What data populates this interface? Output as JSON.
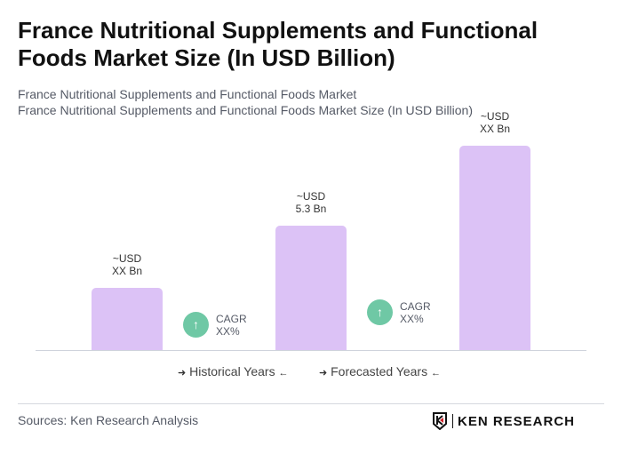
{
  "header": {
    "title": "France Nutritional Supplements and Functional Foods Market Size (In USD Billion)",
    "subtitle1": "France Nutritional Supplements and Functional Foods Market",
    "subtitle2": "France Nutritional Supplements and Functional Foods Market Size (In USD Billion)"
  },
  "chart_data": {
    "type": "bar",
    "categories": [
      "",
      "",
      ""
    ],
    "values": [
      2.65,
      5.3,
      8.7
    ],
    "data_labels": [
      {
        "line1": "~USD",
        "line2": "XX Bn"
      },
      {
        "line1": "~USD",
        "line2": "5.3 Bn"
      },
      {
        "line1": "~USD",
        "line2": "XX Bn"
      }
    ],
    "bar_color": "#dcc2f6",
    "grid": false,
    "cagr": [
      {
        "label": "CAGR",
        "value": "XX%"
      },
      {
        "label": "CAGR",
        "value": "XX%"
      }
    ],
    "cagr_color": "#6fc8a5",
    "legend": {
      "historical": "Historical Years",
      "forecasted": "Forecasted Years",
      "placement": "bottom"
    }
  },
  "footer": {
    "source": "Sources: Ken Research Analysis",
    "logo": "KEN RESEARCH"
  }
}
